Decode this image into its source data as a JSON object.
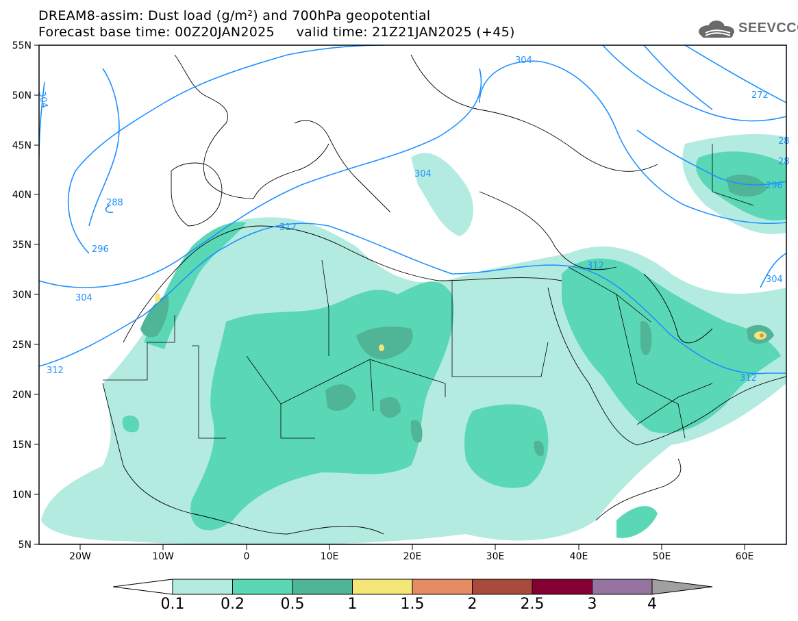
{
  "header": {
    "title_line1": "DREAM8-assim: Dust load (g/m²) and 700hPa geopotential",
    "title_line2": "Forecast base time: 00Z20JAN2025     valid time: 21Z21JAN2025 (+45)"
  },
  "logo": {
    "text": "SEEVCCC",
    "icon": "cloud-icon"
  },
  "map": {
    "lon_labels": [
      "20W",
      "10W",
      "0",
      "10E",
      "20E",
      "30E",
      "40E",
      "50E",
      "60E"
    ],
    "lat_labels": [
      "55N",
      "50N",
      "45N",
      "40N",
      "35N",
      "30N",
      "25N",
      "20N",
      "15N",
      "10N",
      "5N"
    ],
    "contour_labels": [
      "304",
      "272",
      "288",
      "296",
      "304",
      "312",
      "312",
      "304",
      "312",
      "296",
      "304",
      "312",
      "304",
      "28",
      "28"
    ],
    "contour_color": "#1e90ff"
  },
  "colorbar": {
    "labels": [
      "0.1",
      "0.2",
      "0.5",
      "1",
      "1.5",
      "2",
      "2.5",
      "3",
      "4"
    ],
    "colors": [
      "#ffffff",
      "#b4ebe1",
      "#5ad7b4",
      "#50b496",
      "#f5e678",
      "#e68c64",
      "#a84b3c",
      "#820032",
      "#9673a0",
      "#a0a0a0"
    ]
  }
}
